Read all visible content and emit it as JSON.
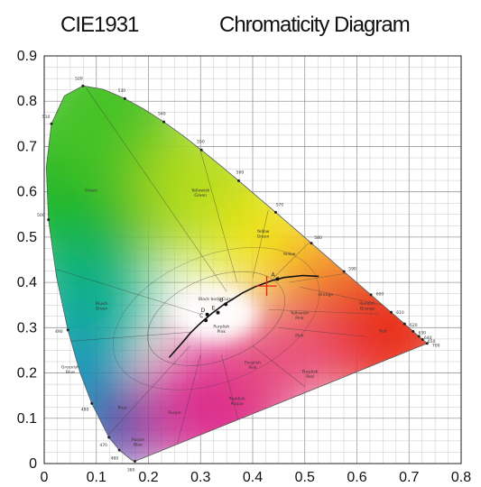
{
  "title": {
    "left": "CIE1931",
    "right": "Chromaticity Diagram"
  },
  "chart_data": {
    "type": "scatter",
    "x_ticks": [
      "0",
      "0.1",
      "0.2",
      "0.3",
      "0.4",
      "0.5",
      "0.6",
      "0.7",
      "0.8"
    ],
    "y_ticks": [
      "0",
      "0.1",
      "0.2",
      "0.3",
      "0.4",
      "0.5",
      "0.6",
      "0.7",
      "0.8",
      "0.9"
    ],
    "xlim": [
      0,
      0.8
    ],
    "ylim": [
      0,
      0.9
    ],
    "grid": true,
    "marker": {
      "x": 0.427,
      "y": 0.392,
      "color": "#e8201c"
    },
    "spectral_locus": [
      [
        0.1741,
        0.005
      ],
      [
        0.1738,
        0.0049
      ],
      [
        0.1714,
        0.0051
      ],
      [
        0.1689,
        0.0069
      ],
      [
        0.1644,
        0.0109
      ],
      [
        0.1566,
        0.0177
      ],
      [
        0.144,
        0.0297
      ],
      [
        0.1241,
        0.0578
      ],
      [
        0.0913,
        0.1327
      ],
      [
        0.0687,
        0.2007
      ],
      [
        0.0454,
        0.295
      ],
      [
        0.0235,
        0.4127
      ],
      [
        0.0082,
        0.5384
      ],
      [
        0.0039,
        0.6548
      ],
      [
        0.0139,
        0.7502
      ],
      [
        0.0389,
        0.812
      ],
      [
        0.0743,
        0.8338
      ],
      [
        0.1142,
        0.8262
      ],
      [
        0.1547,
        0.8059
      ],
      [
        0.1929,
        0.7816
      ],
      [
        0.2296,
        0.7543
      ],
      [
        0.2658,
        0.7243
      ],
      [
        0.3016,
        0.6923
      ],
      [
        0.3373,
        0.6589
      ],
      [
        0.3731,
        0.6245
      ],
      [
        0.4087,
        0.5896
      ],
      [
        0.4441,
        0.5547
      ],
      [
        0.4788,
        0.5202
      ],
      [
        0.5125,
        0.4866
      ],
      [
        0.5448,
        0.4544
      ],
      [
        0.5752,
        0.4242
      ],
      [
        0.6029,
        0.3965
      ],
      [
        0.627,
        0.3725
      ],
      [
        0.6482,
        0.3514
      ],
      [
        0.6658,
        0.334
      ],
      [
        0.6801,
        0.3197
      ],
      [
        0.6915,
        0.3083
      ],
      [
        0.7006,
        0.2993
      ],
      [
        0.7079,
        0.292
      ],
      [
        0.714,
        0.2859
      ],
      [
        0.719,
        0.2809
      ],
      [
        0.723,
        0.277
      ],
      [
        0.726,
        0.274
      ],
      [
        0.7347,
        0.2653
      ]
    ],
    "planckian_locus": [
      [
        0.5267,
        0.4133
      ],
      [
        0.4959,
        0.4152
      ],
      [
        0.4603,
        0.4108
      ],
      [
        0.4369,
        0.4041
      ],
      [
        0.4053,
        0.3907
      ],
      [
        0.3805,
        0.3768
      ],
      [
        0.3607,
        0.3621
      ],
      [
        0.3451,
        0.3516
      ],
      [
        0.3221,
        0.3318
      ],
      [
        0.3064,
        0.3166
      ],
      [
        0.2952,
        0.305
      ],
      [
        0.2806,
        0.2883
      ],
      [
        0.2651,
        0.2673
      ],
      [
        0.2399,
        0.2342
      ]
    ],
    "wavelength_labels": [
      {
        "text": "380",
        "x": 0.1741,
        "y": 0.005
      },
      {
        "text": "460",
        "x": 0.144,
        "y": 0.0297
      },
      {
        "text": "470",
        "x": 0.1241,
        "y": 0.0578
      },
      {
        "text": "480",
        "x": 0.0913,
        "y": 0.1327
      },
      {
        "text": "490",
        "x": 0.0454,
        "y": 0.295
      },
      {
        "text": "500",
        "x": 0.0082,
        "y": 0.5384
      },
      {
        "text": "510",
        "x": 0.0139,
        "y": 0.7502
      },
      {
        "text": "520",
        "x": 0.0743,
        "y": 0.8338
      },
      {
        "text": "530",
        "x": 0.1547,
        "y": 0.8059
      },
      {
        "text": "540",
        "x": 0.2296,
        "y": 0.7543
      },
      {
        "text": "550",
        "x": 0.3016,
        "y": 0.6923
      },
      {
        "text": "560",
        "x": 0.3731,
        "y": 0.6245
      },
      {
        "text": "570",
        "x": 0.4441,
        "y": 0.5547
      },
      {
        "text": "580",
        "x": 0.5125,
        "y": 0.4866
      },
      {
        "text": "590",
        "x": 0.5752,
        "y": 0.4242
      },
      {
        "text": "600",
        "x": 0.627,
        "y": 0.3725
      },
      {
        "text": "610",
        "x": 0.6658,
        "y": 0.334
      },
      {
        "text": "620",
        "x": 0.6915,
        "y": 0.3083
      },
      {
        "text": "630",
        "x": 0.7079,
        "y": 0.292
      },
      {
        "text": "640",
        "x": 0.719,
        "y": 0.2809
      },
      {
        "text": "650",
        "x": 0.726,
        "y": 0.274
      },
      {
        "text": "700",
        "x": 0.7347,
        "y": 0.2653
      }
    ],
    "color_regions": [
      {
        "text": "Green",
        "x": 0.09,
        "y": 0.6
      },
      {
        "text": "Yellowish Green",
        "x": 0.3,
        "y": 0.6
      },
      {
        "text": "Yellow Green",
        "x": 0.42,
        "y": 0.51
      },
      {
        "text": "Yellow",
        "x": 0.47,
        "y": 0.46
      },
      {
        "text": "Bluish Green",
        "x": 0.11,
        "y": 0.35
      },
      {
        "text": "Greenish Blue",
        "x": 0.05,
        "y": 0.21
      },
      {
        "text": "Blue",
        "x": 0.15,
        "y": 0.12
      },
      {
        "text": "Purple Blue",
        "x": 0.18,
        "y": 0.05
      },
      {
        "text": "Orange",
        "x": 0.54,
        "y": 0.37
      },
      {
        "text": "Reddish Orange",
        "x": 0.62,
        "y": 0.35
      },
      {
        "text": "Yellowish Pink",
        "x": 0.49,
        "y": 0.33
      },
      {
        "text": "Pink",
        "x": 0.49,
        "y": 0.28
      },
      {
        "text": "Red",
        "x": 0.65,
        "y": 0.29
      },
      {
        "text": "Purple",
        "x": 0.25,
        "y": 0.11
      },
      {
        "text": "Purplish Pink",
        "x": 0.4,
        "y": 0.22
      },
      {
        "text": "Purplish Red",
        "x": 0.51,
        "y": 0.2
      },
      {
        "text": "Reddish Purple",
        "x": 0.37,
        "y": 0.14
      },
      {
        "text": "Purplish Pink",
        "x": 0.34,
        "y": 0.3
      },
      {
        "text": "Black body Curve",
        "x": 0.33,
        "y": 0.36
      }
    ],
    "illuminants": [
      {
        "text": "A",
        "x": 0.4476,
        "y": 0.4074
      },
      {
        "text": "B",
        "x": 0.3484,
        "y": 0.3516
      },
      {
        "text": "C",
        "x": 0.3101,
        "y": 0.3162
      },
      {
        "text": "D",
        "x": 0.3127,
        "y": 0.329
      },
      {
        "text": "E",
        "x": 0.3333,
        "y": 0.3333
      }
    ]
  }
}
